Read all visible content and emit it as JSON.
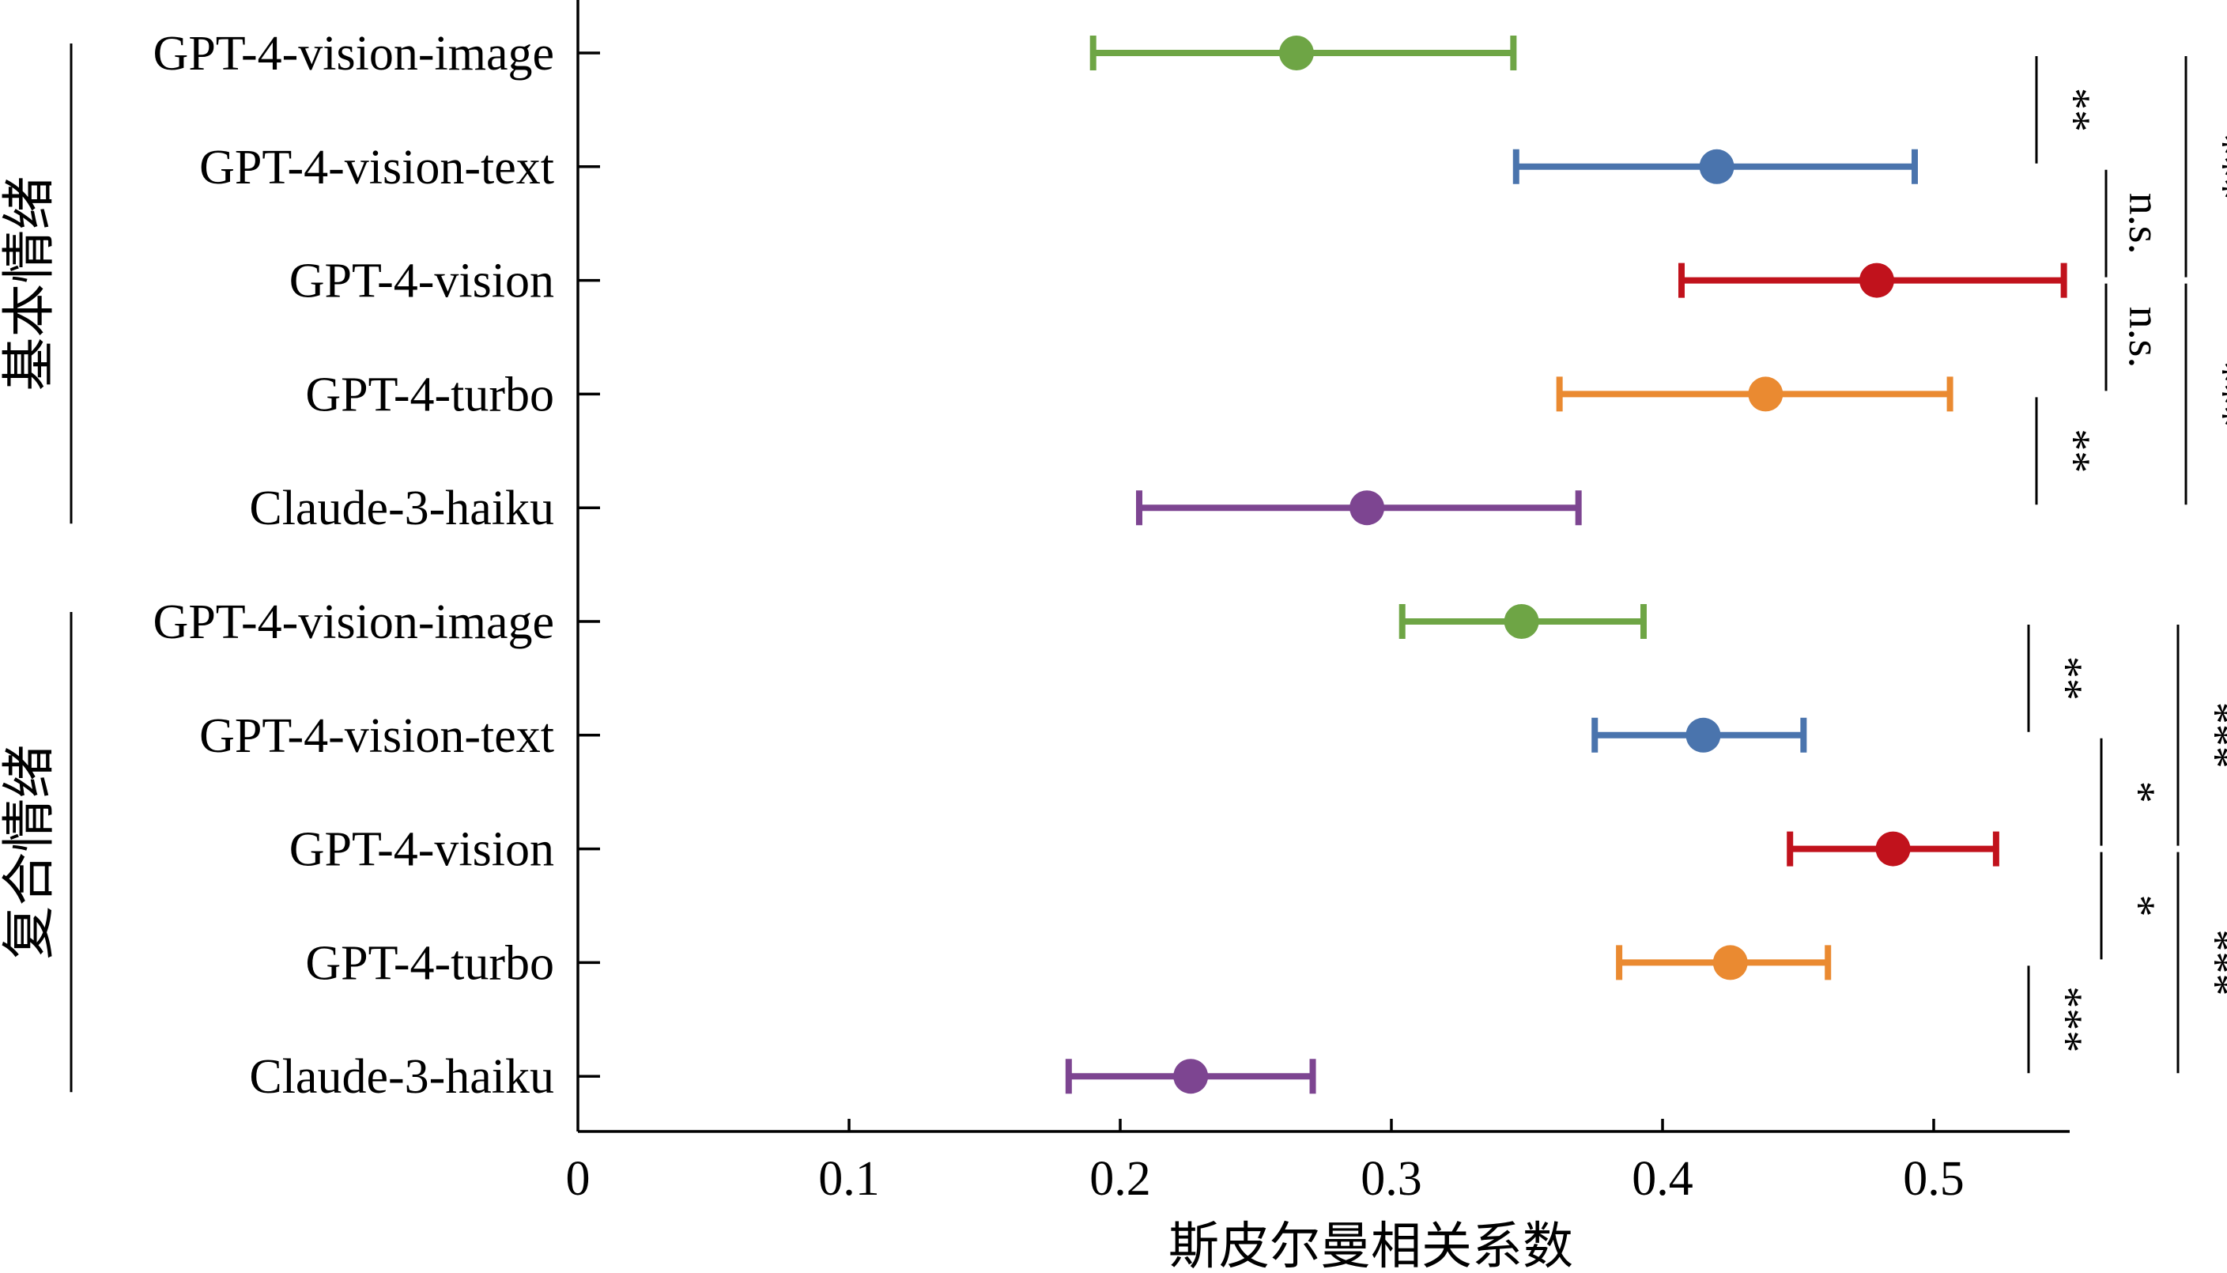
{
  "chart_data": {
    "type": "scatter",
    "orientation": "horizontal",
    "xlabel": "斯皮尔曼相关系数",
    "xlim": [
      0,
      0.55
    ],
    "x_ticks": [
      "0",
      "0.1",
      "0.2",
      "0.3",
      "0.4",
      "0.5"
    ],
    "colors": {
      "GPT-4-vision-image": "#6ea545",
      "GPT-4-vision-text": "#4a74ad",
      "GPT-4-vision": "#c1121c",
      "GPT-4-turbo": "#ea8a31",
      "Claude-3-haiku": "#7d4591"
    },
    "groups": [
      {
        "label": "基本情绪",
        "rows": [
          {
            "model": "GPT-4-vision-image",
            "mean": 0.265,
            "low": 0.19,
            "high": 0.345
          },
          {
            "model": "GPT-4-vision-text",
            "mean": 0.42,
            "low": 0.346,
            "high": 0.493
          },
          {
            "model": "GPT-4-vision",
            "mean": 0.479,
            "low": 0.407,
            "high": 0.548
          },
          {
            "model": "GPT-4-turbo",
            "mean": 0.438,
            "low": 0.362,
            "high": 0.506
          },
          {
            "model": "Claude-3-haiku",
            "mean": 0.291,
            "low": 0.207,
            "high": 0.369
          }
        ],
        "significance": [
          {
            "from": 0,
            "to": 1,
            "label": "**",
            "level": 1
          },
          {
            "from": 1,
            "to": 2,
            "label": "n.s.",
            "level": 2
          },
          {
            "from": 2,
            "to": 3,
            "label": "n.s.",
            "level": 2
          },
          {
            "from": 3,
            "to": 4,
            "label": "**",
            "level": 1
          },
          {
            "from": 0,
            "to": 2,
            "label": "***",
            "level": 3
          },
          {
            "from": 2,
            "to": 4,
            "label": "***",
            "level": 3
          }
        ]
      },
      {
        "label": "复合情绪",
        "rows": [
          {
            "model": "GPT-4-vision-image",
            "mean": 0.348,
            "low": 0.304,
            "high": 0.393
          },
          {
            "model": "GPT-4-vision-text",
            "mean": 0.415,
            "low": 0.375,
            "high": 0.452
          },
          {
            "model": "GPT-4-vision",
            "mean": 0.485,
            "low": 0.447,
            "high": 0.523
          },
          {
            "model": "GPT-4-turbo",
            "mean": 0.425,
            "low": 0.384,
            "high": 0.461
          },
          {
            "model": "Claude-3-haiku",
            "mean": 0.226,
            "low": 0.181,
            "high": 0.271
          }
        ],
        "significance": [
          {
            "from": 0,
            "to": 1,
            "label": "**",
            "level": 1
          },
          {
            "from": 1,
            "to": 2,
            "label": "*",
            "level": 2
          },
          {
            "from": 2,
            "to": 3,
            "label": "*",
            "level": 2
          },
          {
            "from": 3,
            "to": 4,
            "label": "***",
            "level": 1
          },
          {
            "from": 0,
            "to": 2,
            "label": "***",
            "level": 3
          },
          {
            "from": 2,
            "to": 4,
            "label": "***",
            "level": 3
          }
        ]
      }
    ]
  }
}
